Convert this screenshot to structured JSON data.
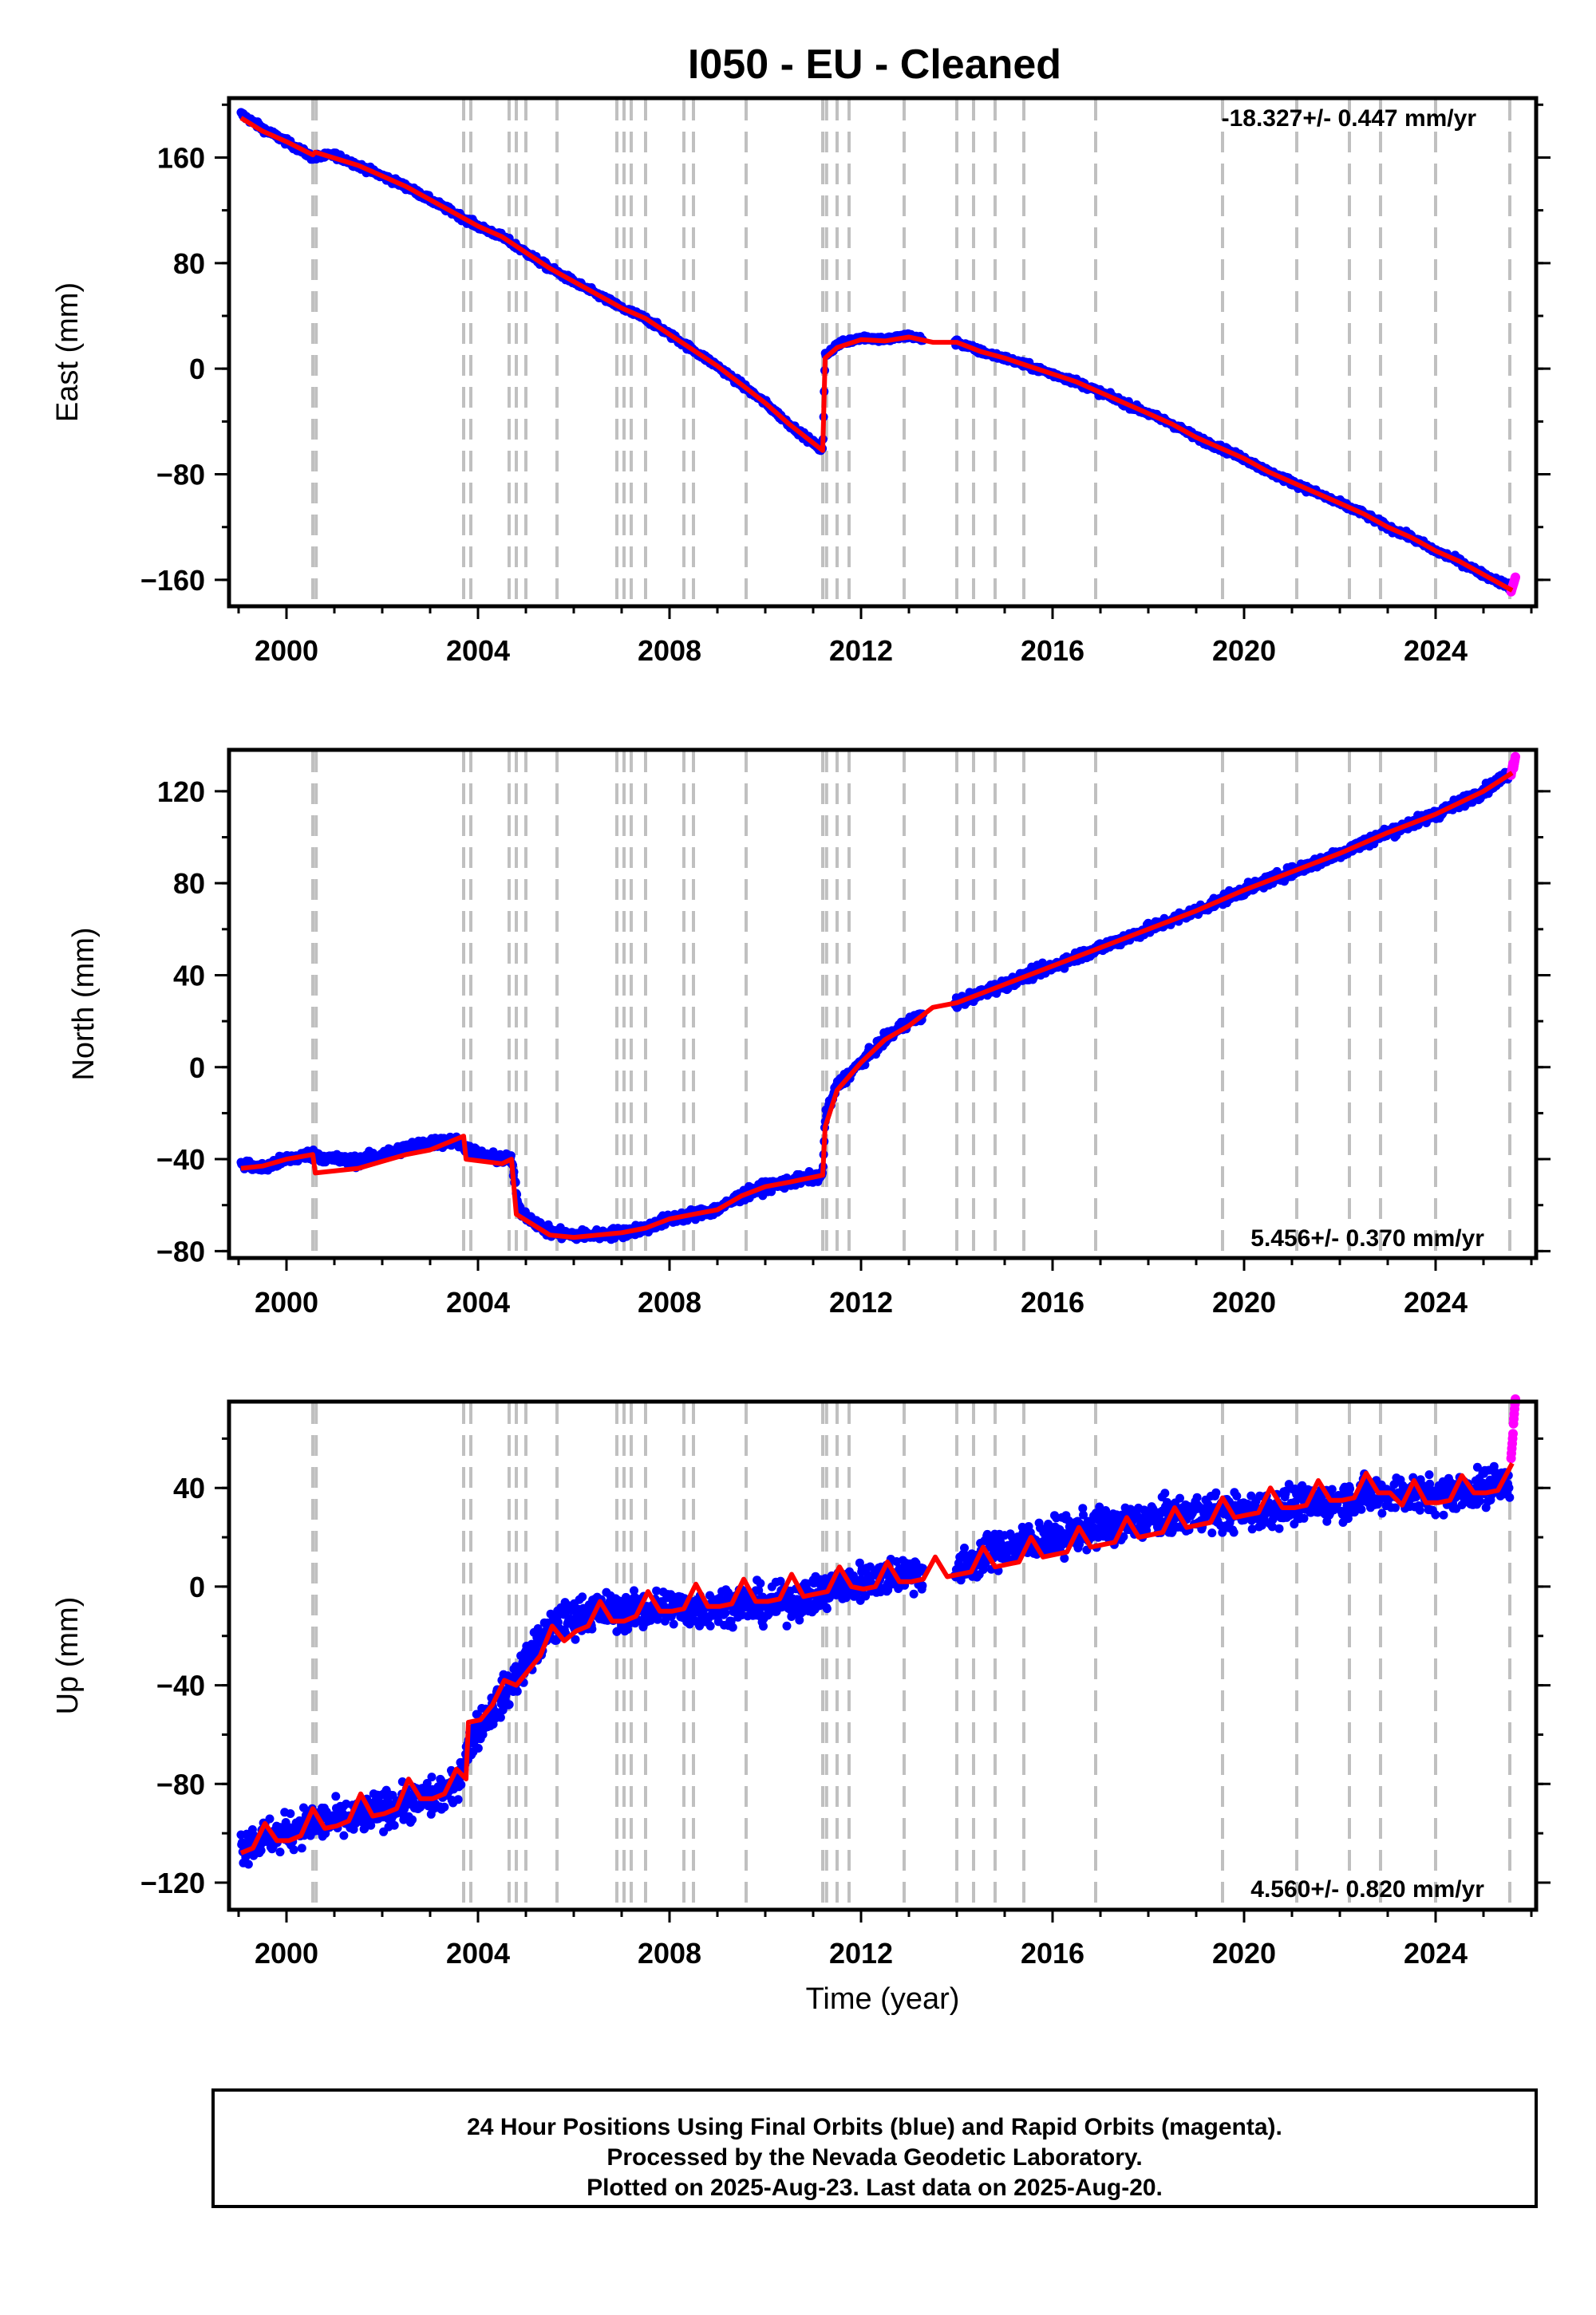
{
  "title": "I050  - EU - Cleaned",
  "footer": {
    "line1": "24 Hour Positions Using Final Orbits (blue) and Rapid Orbits (magenta).",
    "line2": "Processed by the Nevada Geodetic Laboratory.",
    "line3": "Plotted on 2025-Aug-23. Last data on 2025-Aug-20."
  },
  "colors": {
    "final_orbits": "#0000ff",
    "rapid_orbits": "#ff00ff",
    "model": "#ff0000",
    "event_lines": "#c0c0c0"
  },
  "chart_data": [
    {
      "type": "scatter",
      "ylabel": "East (mm)",
      "xlim": [
        1998.8,
        2026.1
      ],
      "ylim": [
        -180,
        205
      ],
      "xticks": [
        "2000",
        "2004",
        "2008",
        "2012",
        "2016",
        "2020",
        "2024"
      ],
      "yticks": [
        "160",
        "80",
        "0",
        "−80",
        "−160"
      ],
      "rate_text": "-18.327+/- 0.447 mm/yr",
      "grid": false,
      "event_lines": [
        2000.55,
        2000.62,
        2003.7,
        2003.85,
        2004.65,
        2004.8,
        2005.0,
        2005.65,
        2006.9,
        2007.05,
        2007.2,
        2007.5,
        2008.3,
        2008.5,
        2009.6,
        2011.2,
        2011.28,
        2011.5,
        2011.75,
        2012.9,
        2014.0,
        2014.35,
        2014.8,
        2015.4,
        2016.9,
        2019.55,
        2021.1,
        2022.2,
        2022.85,
        2024.0,
        2025.55
      ],
      "series": [
        {
          "name": "Final orbits (blue)",
          "x": [
            1999.05,
            1999.5,
            2000.0,
            2000.55,
            2001.0,
            2001.5,
            2002.0,
            2002.5,
            2003.0,
            2003.5,
            2004.0,
            2004.5,
            2005.0,
            2005.5,
            2006.0,
            2006.5,
            2007.0,
            2007.5,
            2008.0,
            2008.5,
            2009.0,
            2009.5,
            2010.0,
            2010.5,
            2011.2,
            2011.25,
            2011.5,
            2012.0,
            2012.5,
            2013.0,
            2013.5,
            2014.0,
            2014.5,
            2015.0,
            2015.5,
            2016.0,
            2016.5,
            2017.0,
            2017.5,
            2018.0,
            2018.5,
            2019.0,
            2019.5,
            2020.0,
            2020.5,
            2021.0,
            2021.5,
            2022.0,
            2022.5,
            2023.0,
            2023.5,
            2024.0,
            2024.5,
            2025.0,
            2025.55
          ],
          "y": [
            193,
            182,
            172,
            160,
            162,
            154,
            146,
            138,
            128,
            118,
            108,
            100,
            88,
            76,
            66,
            56,
            46,
            38,
            26,
            14,
            2,
            -12,
            -26,
            -42,
            -62,
            10,
            18,
            24,
            22,
            25,
            20,
            20,
            13,
            8,
            2,
            -4,
            -10,
            -18,
            -26,
            -34,
            -42,
            -52,
            -60,
            -68,
            -78,
            -86,
            -94,
            -102,
            -110,
            -120,
            -128,
            -138,
            -146,
            -156,
            -165
          ]
        },
        {
          "name": "Rapid orbits (magenta)",
          "x": [
            2025.6,
            2025.65
          ],
          "y": [
            -166,
            -160
          ]
        },
        {
          "name": "Model (red)",
          "x": [
            1999.05,
            1999.5,
            2000.0,
            2000.55,
            2000.6,
            2001.5,
            2002.0,
            2002.5,
            2003.0,
            2003.5,
            2004.0,
            2004.5,
            2005.0,
            2005.5,
            2006.0,
            2006.5,
            2007.0,
            2007.5,
            2008.0,
            2008.5,
            2009.0,
            2009.5,
            2010.0,
            2010.5,
            2011.2,
            2011.25,
            2011.5,
            2012.0,
            2012.5,
            2013.0,
            2013.5,
            2014.0,
            2014.5,
            2015.0,
            2015.5,
            2016.0,
            2016.5,
            2017.0,
            2017.5,
            2018.0,
            2018.5,
            2019.0,
            2019.5,
            2020.0,
            2020.5,
            2021.0,
            2021.5,
            2022.0,
            2022.5,
            2023.0,
            2023.5,
            2024.0,
            2024.5,
            2025.0,
            2025.6
          ],
          "y": [
            190,
            180,
            172,
            162,
            164,
            154,
            146,
            138,
            128,
            118,
            108,
            100,
            88,
            76,
            66,
            56,
            46,
            38,
            26,
            14,
            2,
            -12,
            -26,
            -42,
            -62,
            8,
            16,
            22,
            21,
            24,
            20,
            20,
            13,
            8,
            2,
            -4,
            -10,
            -18,
            -26,
            -34,
            -42,
            -52,
            -60,
            -68,
            -78,
            -86,
            -94,
            -102,
            -110,
            -120,
            -128,
            -138,
            -146,
            -156,
            -168
          ]
        }
      ]
    },
    {
      "type": "scatter",
      "ylabel": "North (mm)",
      "xlim": [
        1998.8,
        2026.1
      ],
      "ylim": [
        -83,
        138
      ],
      "xticks": [
        "2000",
        "2004",
        "2008",
        "2012",
        "2016",
        "2020",
        "2024"
      ],
      "yticks": [
        "120",
        "80",
        "40",
        "0",
        "−40",
        "−80"
      ],
      "rate_text": "5.456+/- 0.370 mm/yr",
      "grid": false,
      "event_lines": [
        2000.55,
        2000.62,
        2003.7,
        2003.85,
        2004.65,
        2004.8,
        2005.0,
        2005.65,
        2006.9,
        2007.05,
        2007.2,
        2007.5,
        2008.3,
        2008.5,
        2009.6,
        2011.2,
        2011.28,
        2011.5,
        2011.75,
        2012.9,
        2014.0,
        2014.35,
        2014.8,
        2015.4,
        2016.9,
        2019.55,
        2021.1,
        2022.2,
        2022.85,
        2024.0,
        2025.55
      ],
      "series": [
        {
          "name": "Final orbits (blue)",
          "x": [
            1999.05,
            1999.5,
            2000.0,
            2000.5,
            2001.0,
            2001.5,
            2002.0,
            2002.5,
            2003.0,
            2003.5,
            2004.0,
            2004.5,
            2004.7,
            2004.85,
            2005.5,
            2006.0,
            2006.5,
            2007.0,
            2007.5,
            2008.0,
            2008.5,
            2009.0,
            2009.5,
            2010.0,
            2010.5,
            2011.2,
            2011.25,
            2011.5,
            2012.0,
            2012.5,
            2013.0,
            2014.0,
            2015.0,
            2016.0,
            2017.0,
            2018.0,
            2019.0,
            2020.0,
            2021.0,
            2022.0,
            2023.0,
            2024.0,
            2025.0,
            2025.55
          ],
          "y": [
            -42,
            -44,
            -40,
            -38,
            -40,
            -41,
            -38,
            -35,
            -33,
            -32,
            -38,
            -40,
            -40,
            -62,
            -72,
            -73,
            -73,
            -72,
            -70,
            -66,
            -64,
            -62,
            -56,
            -52,
            -50,
            -47,
            -22,
            -8,
            2,
            12,
            20,
            28,
            36,
            44,
            52,
            60,
            68,
            77,
            85,
            93,
            102,
            110,
            120,
            128
          ]
        },
        {
          "name": "Rapid orbits (magenta)",
          "x": [
            2025.6,
            2025.65
          ],
          "y": [
            130,
            133
          ]
        },
        {
          "name": "Model (red)",
          "x": [
            1999.05,
            1999.5,
            2000.0,
            2000.55,
            2000.6,
            2001.5,
            2002.0,
            2002.5,
            2003.0,
            2003.7,
            2003.75,
            2004.5,
            2004.7,
            2004.8,
            2005.5,
            2006.0,
            2006.5,
            2007.0,
            2007.5,
            2008.0,
            2008.5,
            2009.0,
            2009.5,
            2010.0,
            2010.5,
            2011.2,
            2011.25,
            2011.5,
            2012.0,
            2012.5,
            2013.0,
            2013.5,
            2014.0,
            2015.0,
            2016.0,
            2017.0,
            2018.0,
            2019.0,
            2020.0,
            2021.0,
            2022.0,
            2023.0,
            2024.0,
            2025.0,
            2025.6
          ],
          "y": [
            -44,
            -43,
            -40,
            -38,
            -46,
            -44,
            -41,
            -38,
            -36,
            -30,
            -40,
            -42,
            -40,
            -64,
            -73,
            -74,
            -73,
            -72,
            -70,
            -66,
            -64,
            -62,
            -56,
            -52,
            -50,
            -47,
            -26,
            -10,
            2,
            12,
            18,
            26,
            28,
            36,
            44,
            52,
            60,
            68,
            77,
            85,
            93,
            102,
            110,
            120,
            128
          ]
        }
      ]
    },
    {
      "type": "scatter",
      "ylabel": "Up (mm)",
      "xlabel": "Time (year)",
      "xlim": [
        1998.8,
        2026.1
      ],
      "ylim": [
        -131,
        75
      ],
      "xticks": [
        "2000",
        "2004",
        "2008",
        "2012",
        "2016",
        "2020",
        "2024"
      ],
      "yticks": [
        "40",
        "0",
        "−40",
        "−80",
        "−120"
      ],
      "rate_text": "4.560+/- 0.820 mm/yr",
      "grid": false,
      "event_lines": [
        2000.55,
        2000.62,
        2003.7,
        2003.85,
        2004.65,
        2004.8,
        2005.0,
        2005.65,
        2006.9,
        2007.05,
        2007.2,
        2007.5,
        2008.3,
        2008.5,
        2009.6,
        2011.2,
        2011.28,
        2011.5,
        2011.75,
        2012.9,
        2014.0,
        2014.35,
        2014.8,
        2015.4,
        2016.9,
        2019.55,
        2021.1,
        2022.2,
        2022.85,
        2024.0,
        2025.55
      ],
      "series": [
        {
          "name": "Final orbits (blue)",
          "x": [
            1999.05,
            1999.5,
            2000.0,
            2000.5,
            2001.0,
            2001.5,
            2002.0,
            2002.5,
            2003.0,
            2003.5,
            2003.9,
            2004.3,
            2004.7,
            2005.0,
            2005.5,
            2006.0,
            2006.5,
            2007.0,
            2007.5,
            2008.0,
            2008.5,
            2009.0,
            2009.5,
            2010.0,
            2010.5,
            2011.0,
            2011.5,
            2012.0,
            2012.5,
            2013.0,
            2014.0,
            2014.5,
            2015.0,
            2015.5,
            2016.0,
            2017.0,
            2018.0,
            2019.0,
            2020.0,
            2021.0,
            2022.0,
            2023.0,
            2024.0,
            2025.0,
            2025.55
          ],
          "y": [
            -105,
            -102,
            -100,
            -96,
            -95,
            -94,
            -90,
            -88,
            -86,
            -82,
            -60,
            -50,
            -40,
            -30,
            -18,
            -12,
            -10,
            -10,
            -10,
            -8,
            -10,
            -8,
            -6,
            -8,
            -6,
            -4,
            0,
            2,
            4,
            6,
            6,
            12,
            16,
            18,
            20,
            24,
            27,
            30,
            30,
            33,
            35,
            38,
            37,
            40,
            44
          ]
        },
        {
          "name": "Rapid orbits (magenta)",
          "x": [
            2025.6,
            2025.65
          ],
          "y": [
            58,
            72
          ]
        },
        {
          "name": "Model (red)",
          "x": [
            1999.05,
            1999.3,
            1999.55,
            1999.8,
            2000.05,
            2000.3,
            2000.55,
            2000.8,
            2001.05,
            2001.3,
            2001.55,
            2001.8,
            2002.05,
            2002.3,
            2002.55,
            2002.8,
            2003.05,
            2003.3,
            2003.55,
            2003.75,
            2003.8,
            2004.05,
            2004.3,
            2004.55,
            2004.8,
            2005.05,
            2005.3,
            2005.55,
            2005.8,
            2006.05,
            2006.3,
            2006.55,
            2006.8,
            2007.05,
            2007.3,
            2007.55,
            2007.8,
            2008.05,
            2008.3,
            2008.55,
            2008.8,
            2009.05,
            2009.3,
            2009.55,
            2009.8,
            2010.05,
            2010.3,
            2010.55,
            2010.8,
            2011.05,
            2011.3,
            2011.55,
            2011.8,
            2012.05,
            2012.3,
            2012.55,
            2012.8,
            2013.05,
            2013.3,
            2013.55,
            2013.8,
            2014.05,
            2014.3,
            2014.55,
            2014.8,
            2015.05,
            2015.3,
            2015.55,
            2015.8,
            2016.05,
            2016.3,
            2016.55,
            2016.8,
            2017.05,
            2017.3,
            2017.55,
            2017.8,
            2018.05,
            2018.3,
            2018.55,
            2018.8,
            2019.05,
            2019.3,
            2019.55,
            2019.8,
            2020.05,
            2020.3,
            2020.55,
            2020.8,
            2021.05,
            2021.3,
            2021.55,
            2021.8,
            2022.05,
            2022.3,
            2022.55,
            2022.8,
            2023.05,
            2023.3,
            2023.55,
            2023.8,
            2024.05,
            2024.3,
            2024.55,
            2024.8,
            2025.05,
            2025.3,
            2025.6
          ],
          "y": [
            -108,
            -106,
            -96,
            -103,
            -103,
            -101,
            -90,
            -98,
            -97,
            -95,
            -84,
            -93,
            -92,
            -90,
            -78,
            -86,
            -86,
            -84,
            -74,
            -78,
            -55,
            -54,
            -48,
            -38,
            -40,
            -34,
            -28,
            -16,
            -22,
            -18,
            -16,
            -6,
            -14,
            -14,
            -12,
            -2,
            -10,
            -10,
            -9,
            1,
            -8,
            -8,
            -7,
            3,
            -6,
            -6,
            -5,
            5,
            -4,
            -3,
            -2,
            8,
            0,
            -1,
            0,
            10,
            2,
            2,
            3,
            12,
            4,
            5,
            6,
            16,
            8,
            9,
            10,
            20,
            12,
            13,
            14,
            24,
            16,
            17,
            18,
            28,
            20,
            21,
            22,
            32,
            24,
            25,
            26,
            36,
            28,
            29,
            30,
            40,
            32,
            32,
            33,
            43,
            35,
            35,
            36,
            46,
            38,
            38,
            33,
            43,
            34,
            34,
            35,
            45,
            38,
            38,
            39,
            50
          ]
        }
      ]
    }
  ]
}
